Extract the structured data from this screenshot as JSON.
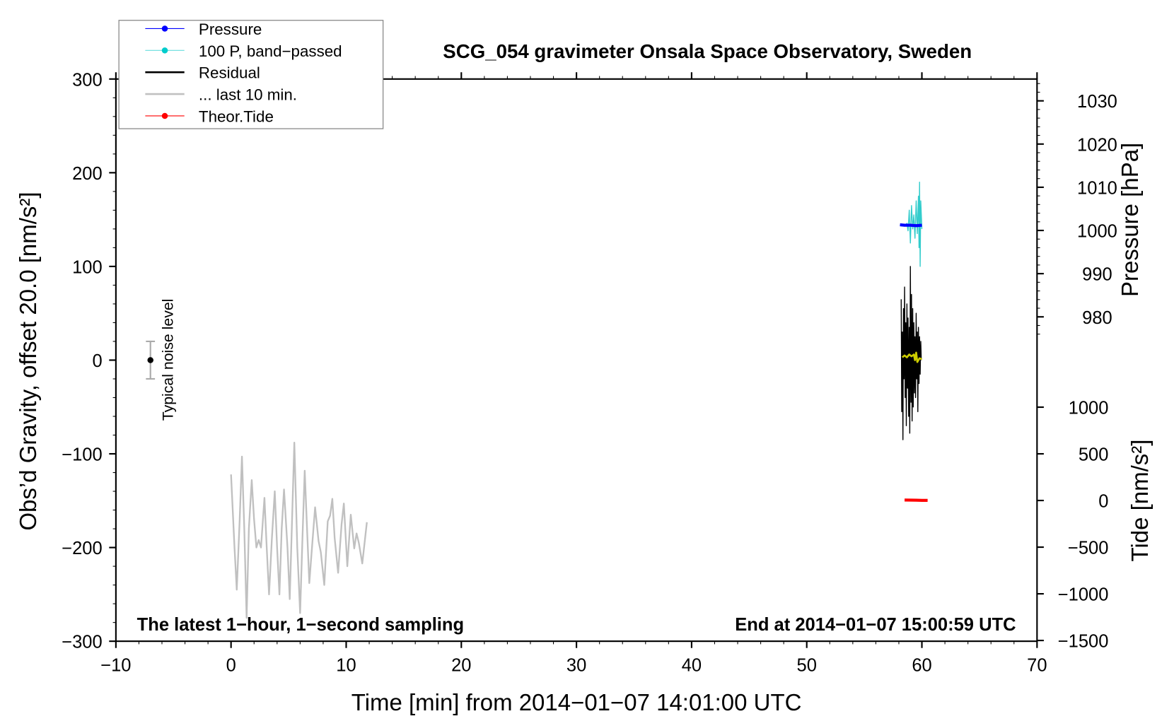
{
  "chart_data": {
    "type": "line",
    "title": "SCG_054 gravimeter Onsala Space Observatory, Sweden",
    "xlabel": "Time [min] from 2014−01−07 14:01:00 UTC",
    "ylabel_left": "Obs’d Gravity, offset 20.0 [nm/s²]",
    "ylabel_right_top": "Pressure [hPa]",
    "ylabel_right_bottom": "Tide [nm/s²]",
    "xlim": [
      -10,
      70
    ],
    "ylim": [
      -300,
      300
    ],
    "pressure_lim": [
      975,
      1035
    ],
    "tide_lim": [
      -1500,
      3300
    ],
    "x_ticks": [
      "−10",
      "0",
      "10",
      "20",
      "30",
      "40",
      "50",
      "60",
      "70"
    ],
    "x_tick_values": [
      -10,
      0,
      10,
      20,
      30,
      40,
      50,
      60,
      70
    ],
    "y_ticks": [
      "300",
      "200",
      "100",
      "0",
      "−100",
      "−200",
      "−300"
    ],
    "y_tick_values": [
      300,
      200,
      100,
      0,
      -100,
      -200,
      -300
    ],
    "pressure_ticks": [
      "1030",
      "1020",
      "1010",
      "1000",
      "990",
      "980"
    ],
    "pressure_tick_values": [
      1030,
      1020,
      1010,
      1000,
      990,
      980
    ],
    "tide_ticks": [
      "1000",
      "500",
      "0",
      "−500",
      "−1000",
      "−1500"
    ],
    "tide_tick_values": [
      1000,
      500,
      0,
      -500,
      -1000,
      -1500
    ],
    "annotation_left": "The latest 1−hour, 1−second sampling",
    "annotation_right": "End at 2014−01−07 15:00:59 UTC",
    "noise_label": "Typical noise level",
    "noise_bar": {
      "x": -7,
      "y": 0,
      "halfwidth": 20
    },
    "legend_placement": "top-left",
    "legend": [
      {
        "label": "Pressure",
        "color": "#0000ff",
        "marker": true
      },
      {
        "label": "100 P, band−passed",
        "color": "#00cccc",
        "marker": true
      },
      {
        "label": "Residual",
        "color": "#000000",
        "marker": false
      },
      {
        "label": "... last 10 min.",
        "color": "#c0c0c0",
        "marker": false
      },
      {
        "label": "Theor.Tide",
        "color": "#ff0000",
        "marker": true
      }
    ],
    "series": [
      {
        "name": "... last 10 min.",
        "color": "#c0c0c0",
        "axis": "left",
        "points": [
          [
            0,
            -122
          ],
          [
            0.3,
            -200
          ],
          [
            0.5,
            -245
          ],
          [
            0.75,
            -170
          ],
          [
            0.95,
            -103
          ],
          [
            1.15,
            -180
          ],
          [
            1.35,
            -275
          ],
          [
            1.55,
            -180
          ],
          [
            1.8,
            -128
          ],
          [
            2.0,
            -170
          ],
          [
            2.2,
            -200
          ],
          [
            2.4,
            -192
          ],
          [
            2.6,
            -200
          ],
          [
            2.9,
            -147
          ],
          [
            3.1,
            -200
          ],
          [
            3.3,
            -250
          ],
          [
            3.55,
            -190
          ],
          [
            3.8,
            -140
          ],
          [
            4.0,
            -200
          ],
          [
            4.2,
            -250
          ],
          [
            4.4,
            -180
          ],
          [
            4.6,
            -138
          ],
          [
            4.9,
            -200
          ],
          [
            5.1,
            -255
          ],
          [
            5.3,
            -170
          ],
          [
            5.5,
            -88
          ],
          [
            5.75,
            -200
          ],
          [
            6.0,
            -270
          ],
          [
            6.2,
            -190
          ],
          [
            6.4,
            -118
          ],
          [
            6.6,
            -180
          ],
          [
            6.8,
            -238
          ],
          [
            7.0,
            -205
          ],
          [
            7.3,
            -157
          ],
          [
            7.6,
            -193
          ],
          [
            7.8,
            -205
          ],
          [
            8.1,
            -240
          ],
          [
            8.4,
            -172
          ],
          [
            8.6,
            -166
          ],
          [
            8.8,
            -148
          ],
          [
            9.0,
            -190
          ],
          [
            9.3,
            -227
          ],
          [
            9.6,
            -175
          ],
          [
            9.8,
            -153
          ],
          [
            10.1,
            -220
          ],
          [
            10.4,
            -165
          ],
          [
            10.7,
            -201
          ],
          [
            10.9,
            -185
          ],
          [
            11.1,
            -195
          ],
          [
            11.4,
            -217
          ],
          [
            11.8,
            -173
          ]
        ]
      },
      {
        "name": "100 P, band−passed",
        "color": "#33cccc",
        "axis": "left",
        "points": [
          [
            58.1,
            144
          ],
          [
            58.3,
            145
          ],
          [
            58.5,
            143
          ],
          [
            58.7,
            146
          ],
          [
            58.8,
            138
          ],
          [
            58.9,
            160
          ],
          [
            59.0,
            125
          ],
          [
            59.1,
            165
          ],
          [
            59.2,
            140
          ],
          [
            59.3,
            155
          ],
          [
            59.4,
            130
          ],
          [
            59.5,
            170
          ],
          [
            59.6,
            135
          ],
          [
            59.7,
            175
          ],
          [
            59.75,
            120
          ],
          [
            59.8,
            190
          ],
          [
            59.85,
            100
          ],
          [
            59.9,
            170
          ],
          [
            60.0,
            140
          ]
        ]
      },
      {
        "name": "Pressure",
        "color": "#0000ff",
        "axis": "pressure",
        "points": [
          [
            58.1,
            1001.3
          ],
          [
            58.5,
            1001.2
          ],
          [
            59.0,
            1001.2
          ],
          [
            59.5,
            1001.1
          ],
          [
            60.0,
            1001.2
          ]
        ]
      },
      {
        "name": "Residual",
        "color": "#000000",
        "axis": "left",
        "points": [
          [
            58.2,
            65
          ],
          [
            58.25,
            -55
          ],
          [
            58.3,
            30
          ],
          [
            58.35,
            -85
          ],
          [
            58.4,
            55
          ],
          [
            58.45,
            -20
          ],
          [
            58.5,
            78
          ],
          [
            58.55,
            -40
          ],
          [
            58.6,
            40
          ],
          [
            58.65,
            -70
          ],
          [
            58.7,
            60
          ],
          [
            58.75,
            -30
          ],
          [
            58.8,
            45
          ],
          [
            58.85,
            -60
          ],
          [
            58.9,
            35
          ],
          [
            58.95,
            -78
          ],
          [
            59.0,
            100
          ],
          [
            59.05,
            -45
          ],
          [
            59.1,
            70
          ],
          [
            59.15,
            -65
          ],
          [
            59.2,
            55
          ],
          [
            59.25,
            -50
          ],
          [
            59.3,
            40
          ],
          [
            59.35,
            -35
          ],
          [
            59.4,
            25
          ],
          [
            59.45,
            -40
          ],
          [
            59.5,
            50
          ],
          [
            59.55,
            -20
          ],
          [
            59.6,
            30
          ],
          [
            59.65,
            -55
          ],
          [
            59.7,
            35
          ],
          [
            59.75,
            -25
          ],
          [
            59.8,
            25
          ],
          [
            59.85,
            -15
          ],
          [
            59.9,
            20
          ],
          [
            59.95,
            0
          ]
        ]
      },
      {
        "name": "Residual (smoothed)",
        "color": "#cccc00",
        "axis": "left",
        "points": [
          [
            58.3,
            3
          ],
          [
            58.5,
            5
          ],
          [
            58.7,
            3
          ],
          [
            58.9,
            6
          ],
          [
            59.1,
            4
          ],
          [
            59.3,
            6
          ],
          [
            59.4,
            0
          ],
          [
            59.5,
            8
          ],
          [
            59.6,
            -2
          ],
          [
            59.8,
            2
          ],
          [
            60.0,
            1
          ]
        ]
      },
      {
        "name": "Theor.Tide",
        "color": "#ff0000",
        "axis": "tide",
        "points": [
          [
            58.5,
            5
          ],
          [
            59.0,
            4
          ],
          [
            59.5,
            3
          ],
          [
            60.0,
            2
          ],
          [
            60.5,
            1
          ]
        ]
      }
    ]
  }
}
